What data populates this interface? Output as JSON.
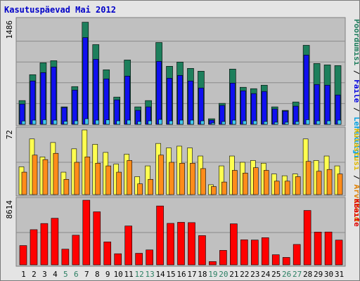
{
  "chart_data": {
    "type": "bar",
    "title": "Kasutuspäevad Mai 2012",
    "categories": [
      "1",
      "2",
      "3",
      "4",
      "5",
      "6",
      "7",
      "8",
      "9",
      "10",
      "11",
      "12",
      "13",
      "14",
      "15",
      "16",
      "17",
      "18",
      "19",
      "20",
      "21",
      "22",
      "23",
      "24",
      "25",
      "26",
      "27",
      "28",
      "29",
      "30",
      "31"
    ],
    "weekend_days": [
      "5",
      "6",
      "12",
      "13",
      "19",
      "20",
      "26",
      "27"
    ],
    "colors": {
      "title": "#0000c8",
      "plot_bg": "#c0c0c0",
      "page_bg": "#e4e4e4",
      "weekday_label": "#000000",
      "weekend_label": "#2a7f62",
      "ylabel_visits": "#1b7c5b",
      "ylabel_pages": "#0000e0",
      "ylabel_files": "#00a0e0",
      "ylabel_hosts": "#e08000",
      "ylabel_kbytes": "#e00000"
    },
    "panels": [
      {
        "id": "top",
        "ymax_label": "1486",
        "ymax": 1486,
        "ylabel_parts": [
          {
            "text": "Pöördumisi",
            "color": "#1b7c5b"
          },
          {
            "text": " / ",
            "color": "#000000"
          },
          {
            "text": "Faile",
            "color": "#0000e0"
          },
          {
            "text": " / ",
            "color": "#000000"
          },
          {
            "text": "Lehekülgi",
            "color": "#00a0e0"
          }
        ],
        "series": [
          {
            "name": "Pöördumisi",
            "color": "#1d7f5c",
            "values": [
              340,
              710,
              880,
              910,
              250,
              540,
              1460,
              1140,
              780,
              390,
              920,
              250,
              340,
              1170,
              830,
              890,
              800,
              760,
              80,
              300,
              790,
              530,
              510,
              560,
              250,
              200,
              320,
              1130,
              870,
              850,
              840
            ]
          },
          {
            "name": "Faile",
            "color": "#1010f0",
            "values": [
              290,
              620,
              740,
              820,
              240,
              490,
              1240,
              930,
              650,
              350,
              690,
              200,
              250,
              900,
              660,
              700,
              620,
              520,
              60,
              270,
              590,
              480,
              440,
              470,
              220,
              190,
              260,
              990,
              570,
              560,
              420
            ]
          },
          {
            "name": "Lehekülgi",
            "color": "#40c8f0",
            "values": [
              48,
              60,
              66,
              60,
              44,
              50,
              80,
              60,
              64,
              50,
              60,
              40,
              50,
              70,
              50,
              60,
              60,
              50,
              20,
              40,
              60,
              50,
              50,
              40,
              30,
              30,
              40,
              66,
              50,
              50,
              60
            ]
          }
        ]
      },
      {
        "id": "mid",
        "ymax_label": "72",
        "ymax": 72,
        "ylabel_parts": [
          {
            "text": "Külastusi",
            "color": "#e0b800"
          },
          {
            "text": " / ",
            "color": "#000000"
          },
          {
            "text": "Arvuteid",
            "color": "#e08000"
          }
        ],
        "series": [
          {
            "name": "Külastusi",
            "color": "#ffff50",
            "values": [
              31,
              62,
              42,
              58,
              25,
              51,
              74,
              56,
              47,
              34,
              45,
              20,
              32,
              57,
              52,
              54,
              52,
              43,
              11,
              32,
              43,
              36,
              38,
              35,
              23,
              21,
              23,
              62,
              38,
              43,
              32
            ]
          },
          {
            "name": "Arvuteid",
            "color": "#ff8c1a",
            "values": [
              25,
              44,
              39,
              46,
              17,
              36,
              42,
              35,
              32,
              25,
              38,
              12,
              17,
              44,
              36,
              35,
              35,
              29,
              9,
              14,
              27,
              24,
              30,
              27,
              15,
              15,
              20,
              37,
              26,
              28,
              23
            ]
          }
        ]
      },
      {
        "id": "bot",
        "ymax_label": "8614",
        "ymax": 8614,
        "ylabel_parts": [
          {
            "text": "KBaite",
            "color": "#e00000"
          }
        ],
        "series": [
          {
            "name": "KBaite",
            "color": "#ff0000",
            "values": [
              2570,
              4690,
              5510,
              6210,
              2090,
              3950,
              8614,
              7070,
              3060,
              1480,
              5180,
              1540,
              1990,
              7850,
              5530,
              5670,
              5630,
              3900,
              440,
              1930,
              5470,
              3340,
              3310,
              3620,
              1350,
              990,
              2720,
              7250,
              4370,
              4380,
              3300
            ]
          }
        ]
      }
    ]
  }
}
